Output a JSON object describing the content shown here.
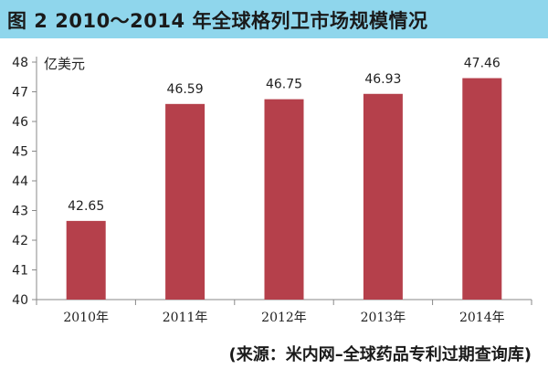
{
  "title": "图 2   2010～2014 年全球格列卫市场规模情况",
  "source": "(来源：米内网–全球药品专利过期查询库)",
  "colors": {
    "title_bg": "#8fd6ec",
    "bar": "#b5404b",
    "axis": "#888888"
  },
  "chart_data": {
    "type": "bar",
    "title": "2010～2014 年全球格列卫市场规模情况",
    "unit_label": "亿美元",
    "categories": [
      "2010年",
      "2011年",
      "2012年",
      "2013年",
      "2014年"
    ],
    "values": [
      42.65,
      46.59,
      46.75,
      46.93,
      47.46
    ],
    "value_labels": [
      "42.65",
      "46.59",
      "46.75",
      "46.93",
      "47.46"
    ],
    "ylim": [
      40,
      48
    ],
    "yticks": [
      40,
      41,
      42,
      43,
      44,
      45,
      46,
      47,
      48
    ],
    "grid": false,
    "legend": "none"
  }
}
